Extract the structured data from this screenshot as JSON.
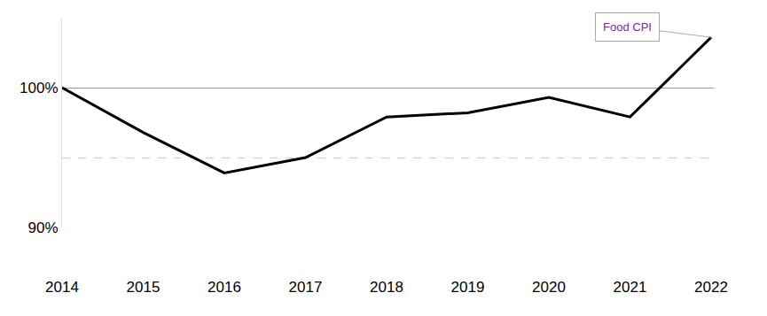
{
  "chart_data": {
    "type": "line",
    "categories": [
      "2014",
      "2015",
      "2016",
      "2017",
      "2018",
      "2019",
      "2020",
      "2021",
      "2022"
    ],
    "values": [
      100,
      96.8,
      93.9,
      95.0,
      97.9,
      98.2,
      99.3,
      97.9,
      103.6
    ],
    "color": "#000000",
    "ylim": [
      90,
      105
    ],
    "yticks": [
      {
        "value": 90,
        "label": "90%"
      },
      {
        "value": 100,
        "label": "100%"
      }
    ],
    "grid": true,
    "annotations": [
      {
        "text": "Food CPI",
        "category": "2022"
      }
    ]
  }
}
